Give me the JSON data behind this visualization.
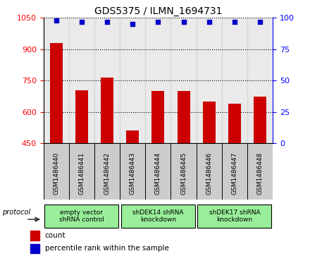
{
  "title": "GDS5375 / ILMN_1694731",
  "samples": [
    "GSM1486440",
    "GSM1486441",
    "GSM1486442",
    "GSM1486443",
    "GSM1486444",
    "GSM1486445",
    "GSM1486446",
    "GSM1486447",
    "GSM1486448"
  ],
  "counts": [
    930,
    705,
    765,
    510,
    700,
    700,
    650,
    640,
    675
  ],
  "percentiles": [
    98,
    97,
    97,
    95,
    97,
    97,
    97,
    97,
    97
  ],
  "ylim_left": [
    450,
    1050
  ],
  "ylim_right": [
    0,
    100
  ],
  "yticks_left": [
    450,
    600,
    750,
    900,
    1050
  ],
  "yticks_right": [
    0,
    25,
    50,
    75,
    100
  ],
  "bar_color": "#cc0000",
  "dot_color": "#0000cc",
  "bar_width": 0.5,
  "groups": [
    {
      "label": "empty vector\nshRNA control",
      "start": 0,
      "end": 3,
      "color": "#99ee99"
    },
    {
      "label": "shDEK14 shRNA\nknockdown",
      "start": 3,
      "end": 6,
      "color": "#99ee99"
    },
    {
      "label": "shDEK17 shRNA\nknockdown",
      "start": 6,
      "end": 9,
      "color": "#99ee99"
    }
  ],
  "protocol_label": "protocol",
  "legend_count_label": "count",
  "legend_percentile_label": "percentile rank within the sample",
  "sample_bg_color": "#cccccc",
  "background_color": "#ffffff"
}
